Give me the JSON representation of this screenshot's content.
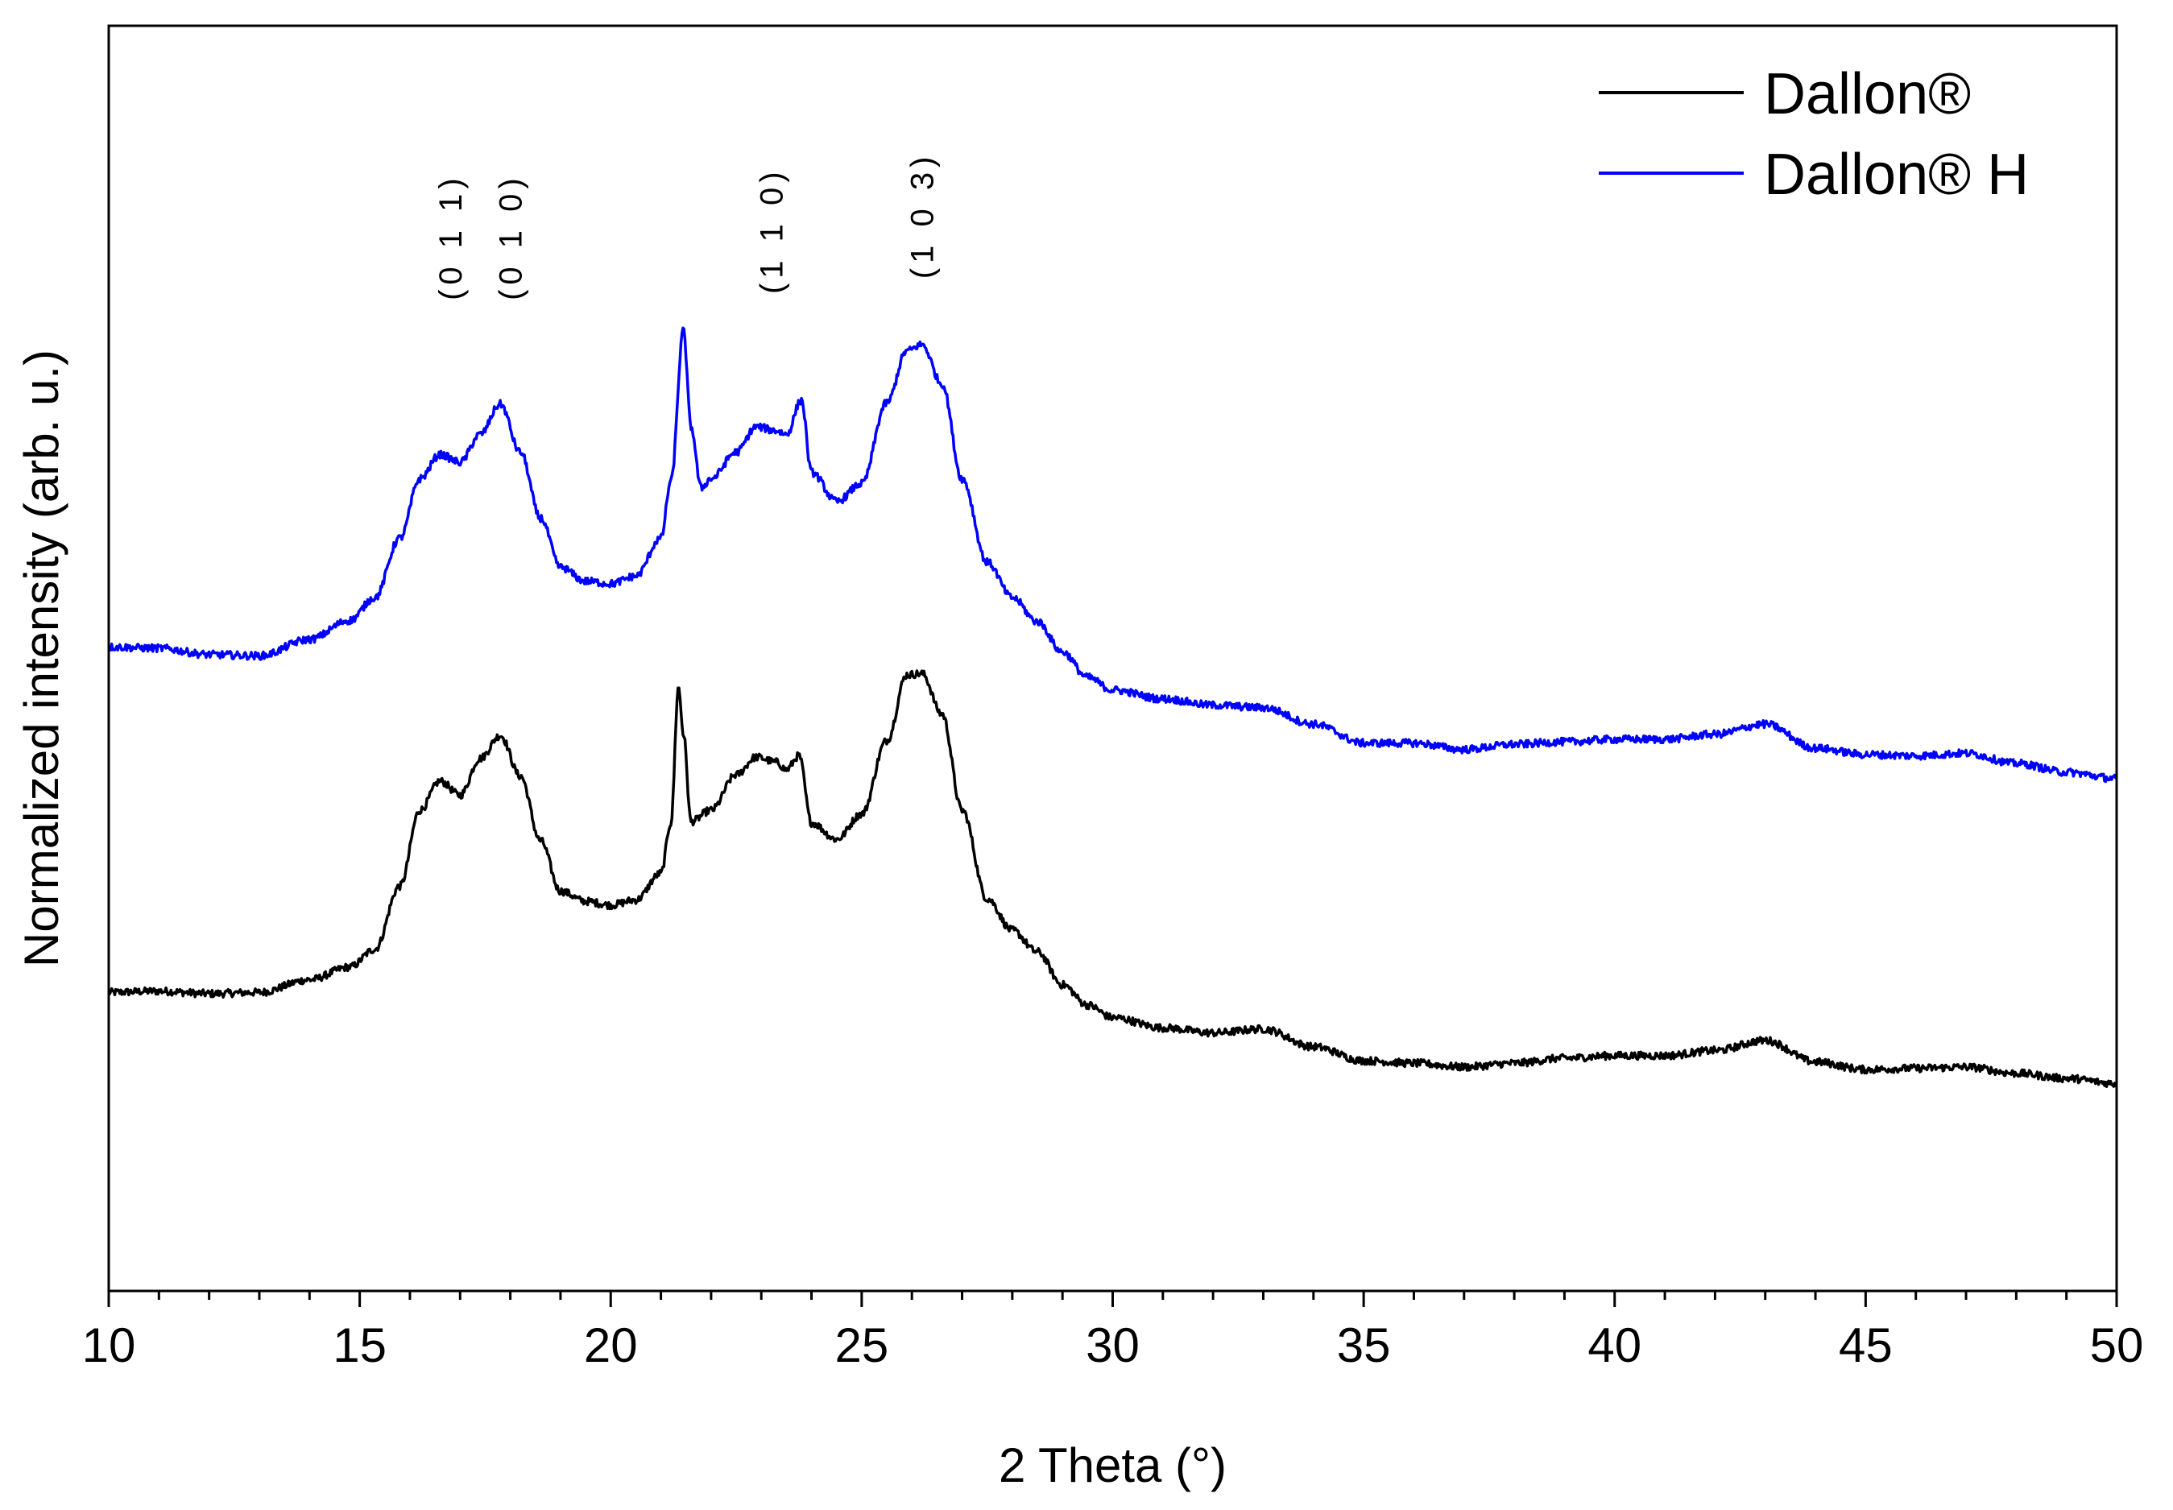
{
  "chart_data": {
    "type": "line",
    "title": "",
    "xlabel": "2 Theta (°)",
    "ylabel": "Normalized intensity (arb. u.)",
    "xlim": [
      10,
      50
    ],
    "ylim": [
      0,
      1
    ],
    "x_ticks": [
      "10",
      "15",
      "20",
      "25",
      "30",
      "35",
      "40",
      "45",
      "50"
    ],
    "y_ticks_shown": false,
    "grid": false,
    "legend_position": "top-right",
    "series": [
      {
        "name": "Dallon®",
        "color": "#000000",
        "points": [
          [
            10.0,
            0.236
          ],
          [
            11.0,
            0.237
          ],
          [
            12.0,
            0.235
          ],
          [
            13.0,
            0.236
          ],
          [
            14.0,
            0.246
          ],
          [
            14.8,
            0.256
          ],
          [
            15.3,
            0.27
          ],
          [
            15.8,
            0.32
          ],
          [
            16.2,
            0.38
          ],
          [
            16.6,
            0.403
          ],
          [
            17.0,
            0.392
          ],
          [
            17.4,
            0.421
          ],
          [
            17.8,
            0.439
          ],
          [
            18.2,
            0.407
          ],
          [
            18.6,
            0.356
          ],
          [
            19.0,
            0.316
          ],
          [
            19.5,
            0.308
          ],
          [
            20.0,
            0.305
          ],
          [
            20.5,
            0.309
          ],
          [
            21.0,
            0.33
          ],
          [
            21.2,
            0.37
          ],
          [
            21.35,
            0.477
          ],
          [
            21.45,
            0.44
          ],
          [
            21.6,
            0.371
          ],
          [
            22.0,
            0.38
          ],
          [
            22.5,
            0.408
          ],
          [
            22.9,
            0.422
          ],
          [
            23.3,
            0.418
          ],
          [
            23.5,
            0.412
          ],
          [
            23.75,
            0.423
          ],
          [
            24.0,
            0.37
          ],
          [
            24.5,
            0.357
          ],
          [
            25.0,
            0.377
          ],
          [
            25.5,
            0.435
          ],
          [
            25.9,
            0.487
          ],
          [
            26.2,
            0.488
          ],
          [
            26.6,
            0.456
          ],
          [
            27.0,
            0.38
          ],
          [
            27.5,
            0.31
          ],
          [
            28.0,
            0.285
          ],
          [
            28.5,
            0.268
          ],
          [
            29.0,
            0.242
          ],
          [
            29.5,
            0.226
          ],
          [
            30.0,
            0.216
          ],
          [
            31.0,
            0.208
          ],
          [
            32.0,
            0.204
          ],
          [
            33.0,
            0.207
          ],
          [
            34.0,
            0.193
          ],
          [
            35.0,
            0.182
          ],
          [
            36.0,
            0.18
          ],
          [
            37.0,
            0.177
          ],
          [
            38.0,
            0.18
          ],
          [
            39.0,
            0.184
          ],
          [
            40.0,
            0.186
          ],
          [
            41.0,
            0.186
          ],
          [
            42.0,
            0.19
          ],
          [
            43.0,
            0.198
          ],
          [
            44.0,
            0.181
          ],
          [
            45.0,
            0.175
          ],
          [
            46.0,
            0.176
          ],
          [
            47.0,
            0.177
          ],
          [
            48.0,
            0.172
          ],
          [
            49.0,
            0.168
          ],
          [
            50.0,
            0.164
          ]
        ]
      },
      {
        "name": "Dallon® H",
        "color": "#0000ff",
        "points": [
          [
            10.0,
            0.509
          ],
          [
            11.0,
            0.508
          ],
          [
            12.0,
            0.503
          ],
          [
            13.0,
            0.502
          ],
          [
            14.0,
            0.515
          ],
          [
            14.8,
            0.53
          ],
          [
            15.3,
            0.548
          ],
          [
            15.8,
            0.595
          ],
          [
            16.2,
            0.642
          ],
          [
            16.6,
            0.661
          ],
          [
            17.0,
            0.655
          ],
          [
            17.4,
            0.677
          ],
          [
            17.8,
            0.701
          ],
          [
            18.2,
            0.663
          ],
          [
            18.6,
            0.611
          ],
          [
            19.0,
            0.572
          ],
          [
            19.5,
            0.561
          ],
          [
            20.0,
            0.559
          ],
          [
            20.5,
            0.565
          ],
          [
            21.0,
            0.595
          ],
          [
            21.2,
            0.64
          ],
          [
            21.45,
            0.759
          ],
          [
            21.6,
            0.683
          ],
          [
            21.8,
            0.635
          ],
          [
            22.0,
            0.642
          ],
          [
            22.5,
            0.663
          ],
          [
            22.9,
            0.683
          ],
          [
            23.3,
            0.68
          ],
          [
            23.5,
            0.677
          ],
          [
            23.8,
            0.704
          ],
          [
            24.0,
            0.647
          ],
          [
            24.5,
            0.624
          ],
          [
            25.0,
            0.638
          ],
          [
            25.5,
            0.702
          ],
          [
            25.9,
            0.743
          ],
          [
            26.2,
            0.748
          ],
          [
            26.6,
            0.717
          ],
          [
            27.0,
            0.642
          ],
          [
            27.5,
            0.576
          ],
          [
            28.0,
            0.548
          ],
          [
            28.5,
            0.529
          ],
          [
            29.0,
            0.505
          ],
          [
            29.5,
            0.485
          ],
          [
            30.0,
            0.475
          ],
          [
            31.0,
            0.468
          ],
          [
            32.0,
            0.463
          ],
          [
            33.0,
            0.461
          ],
          [
            34.0,
            0.448
          ],
          [
            35.0,
            0.433
          ],
          [
            36.0,
            0.433
          ],
          [
            37.0,
            0.428
          ],
          [
            38.0,
            0.432
          ],
          [
            39.0,
            0.434
          ],
          [
            40.0,
            0.436
          ],
          [
            41.0,
            0.436
          ],
          [
            42.0,
            0.44
          ],
          [
            43.0,
            0.448
          ],
          [
            44.0,
            0.429
          ],
          [
            45.0,
            0.424
          ],
          [
            46.0,
            0.423
          ],
          [
            47.0,
            0.425
          ],
          [
            48.0,
            0.417
          ],
          [
            49.0,
            0.41
          ],
          [
            50.0,
            0.405
          ]
        ]
      }
    ],
    "annotations": [
      {
        "text": "(0 1 1)",
        "x": 16.8,
        "y": 0.783,
        "rotation": -90
      },
      {
        "text": "(0 1 0)",
        "x": 18.0,
        "y": 0.783,
        "rotation": -90
      },
      {
        "text": "(1 1 0)",
        "x": 23.2,
        "y": 0.788,
        "rotation": -90
      },
      {
        "text": "(1 0 3)",
        "x": 26.2,
        "y": 0.8,
        "rotation": -90
      }
    ]
  }
}
